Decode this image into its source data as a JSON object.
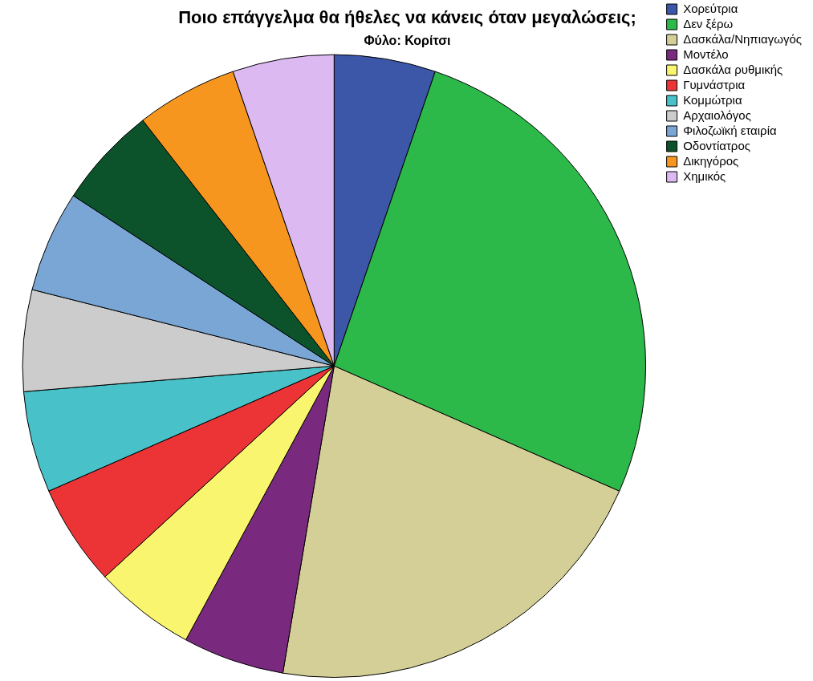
{
  "chart_data": {
    "type": "pie",
    "title": "Ποιο επάγγελμα θα ήθελες να κάνεις όταν μεγαλώσεις;",
    "subtitle": "Φύλο: Κορίτσι",
    "categories": [
      "Χορεύτρια",
      "Δεν ξέρω",
      "Δασκάλα/Νηπιαγωγός",
      "Μοντέλο",
      "Δασκάλα ρυθμικής",
      "Γυμνάστρια",
      "Κομμώτρια",
      "Αρχαιολόγος",
      "Φιλοζωϊκή εταιρία",
      "Οδοντίατρος",
      "Δικηγόρος",
      "Χημικός"
    ],
    "values": [
      5.263,
      26.32,
      21.05,
      5.263,
      5.263,
      5.263,
      5.263,
      5.263,
      5.263,
      5.263,
      5.263,
      5.263
    ],
    "colors": [
      "#3c56a8",
      "#2db84a",
      "#d4cf97",
      "#7a2a7e",
      "#f9f56e",
      "#ec3437",
      "#49c1c8",
      "#cccccc",
      "#7aa6d6",
      "#0c522a",
      "#f7961f",
      "#dcb9f0"
    ],
    "legend": "top right"
  }
}
